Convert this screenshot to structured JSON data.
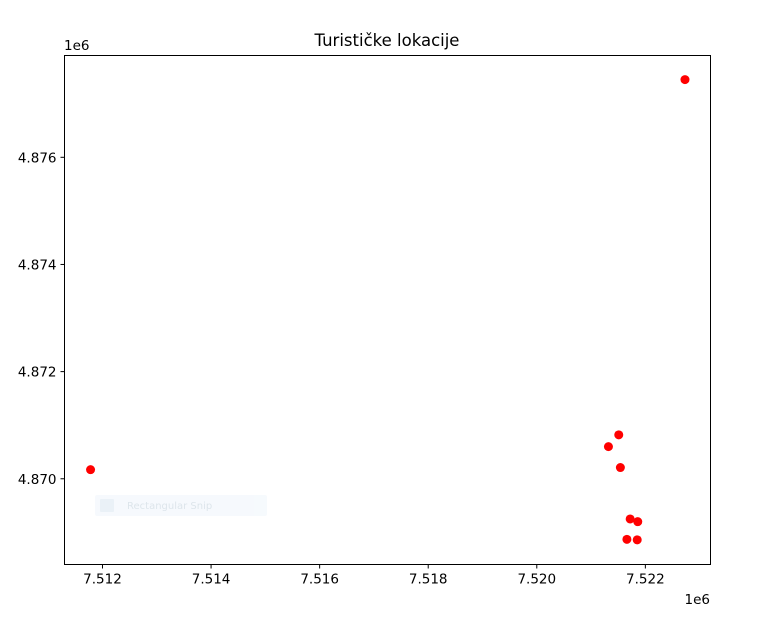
{
  "chart_data": {
    "type": "scatter",
    "title": "Turističke lokacije",
    "xlabel": "",
    "ylabel": "",
    "x_offset_label": "1e6",
    "y_offset_label": "1e6",
    "xlim": [
      7.5113,
      7.5232
    ],
    "ylim": [
      4.8684,
      4.8779
    ],
    "x_ticks": [
      7.512,
      7.514,
      7.516,
      7.518,
      7.52,
      7.522
    ],
    "x_tick_labels": [
      "7.512",
      "7.514",
      "7.516",
      "7.518",
      "7.520",
      "7.522"
    ],
    "y_ticks": [
      4.87,
      4.872,
      4.874,
      4.876
    ],
    "y_tick_labels": [
      "4.870",
      "4.872",
      "4.874",
      "4.876"
    ],
    "grid": false,
    "marker_color": "#ff0000",
    "series": [
      {
        "x": [
          7.52273,
          7.51178,
          7.52151,
          7.52132,
          7.52154,
          7.52172,
          7.52186,
          7.52166,
          7.52185
        ],
        "y": [
          4.87745,
          4.87017,
          4.87082,
          4.8706,
          4.87021,
          4.86925,
          4.8692,
          4.86887,
          4.86886
        ]
      }
    ]
  },
  "overlay": {
    "snip_label": "Rectangular Snip"
  }
}
